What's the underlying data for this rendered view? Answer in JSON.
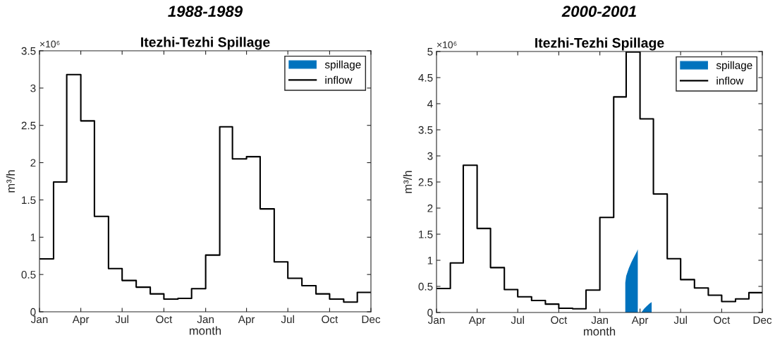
{
  "chart_data": [
    {
      "type": "step",
      "title": "1988-1989",
      "subtitle": "Itezhi-Tezhi Spillage",
      "xlabel": "month",
      "ylabel": "m³/h",
      "annotations": [
        "×10⁶"
      ],
      "xlim": [
        "1988-01",
        "1989-12-31"
      ],
      "xticks": [
        {
          "value": "1988-01",
          "label": "Jan"
        },
        {
          "value": "1988-04",
          "label": "Apr"
        },
        {
          "value": "1988-07",
          "label": "Jul"
        },
        {
          "value": "1988-10",
          "label": "Oct"
        },
        {
          "value": "1989-01",
          "label": "Jan"
        },
        {
          "value": "1989-04",
          "label": "Apr"
        },
        {
          "value": "1989-07",
          "label": "Jul"
        },
        {
          "value": "1989-10",
          "label": "Oct"
        },
        {
          "value": "1989-12-31",
          "label": "Dec"
        }
      ],
      "ylim": [
        0,
        3.5
      ],
      "yticks": [
        0,
        0.5,
        1,
        1.5,
        2,
        2.5,
        3,
        3.5
      ],
      "grid": false,
      "legend": "top right",
      "series": [
        {
          "name": "spillage",
          "type": "area",
          "color": "#0072bd"
        },
        {
          "name": "inflow",
          "color": "#000000",
          "x": [
            "1988-01",
            "1988-02",
            "1988-03",
            "1988-04",
            "1988-05",
            "1988-06",
            "1988-07",
            "1988-08",
            "1988-09",
            "1988-10",
            "1988-11",
            "1988-12",
            "1989-01",
            "1989-02",
            "1989-03",
            "1989-04",
            "1989-05",
            "1989-06",
            "1989-07",
            "1989-08",
            "1989-09",
            "1989-10",
            "1989-11",
            "1989-12",
            "1989-12-31"
          ],
          "values": [
            0.71,
            1.74,
            3.18,
            2.56,
            1.28,
            0.58,
            0.42,
            0.33,
            0.24,
            0.17,
            0.18,
            0.31,
            0.76,
            2.48,
            2.05,
            2.08,
            1.38,
            0.67,
            0.45,
            0.35,
            0.24,
            0.17,
            0.13,
            0.26,
            0.26
          ]
        }
      ]
    },
    {
      "type": "step",
      "title": "2000-2001",
      "subtitle": "Itezhi-Tezhi Spillage",
      "xlabel": "month",
      "ylabel": "m³/h",
      "annotations": [
        "×10⁶"
      ],
      "xlim": [
        "2000-01",
        "2001-12-31"
      ],
      "xticks": [
        {
          "value": "2000-01",
          "label": "Jan"
        },
        {
          "value": "2000-04",
          "label": "Apr"
        },
        {
          "value": "2000-07",
          "label": "Jul"
        },
        {
          "value": "2000-10",
          "label": "Oct"
        },
        {
          "value": "2001-01",
          "label": "Jan"
        },
        {
          "value": "2001-04",
          "label": "Apr"
        },
        {
          "value": "2001-07",
          "label": "Jul"
        },
        {
          "value": "2001-10",
          "label": "Oct"
        },
        {
          "value": "2001-12-31",
          "label": "Dec"
        }
      ],
      "ylim": [
        0,
        5
      ],
      "yticks": [
        0,
        0.5,
        1,
        1.5,
        2,
        2.5,
        3,
        3.5,
        4,
        4.5,
        5
      ],
      "grid": false,
      "legend": "top right",
      "series": [
        {
          "name": "spillage",
          "type": "area",
          "color": "#0072bd",
          "x": [
            "2001-02-27",
            "2001-02-27",
            "2001-03-01",
            "2001-03-07",
            "2001-03-13",
            "2001-03-19",
            "2001-03-25",
            "2001-03-27",
            "2001-03-27",
            "2001-04-01",
            "2001-04-04",
            "2001-04-10",
            "2001-04-16",
            "2001-04-22",
            "2001-04-27",
            "2001-04-27"
          ],
          "values": [
            0,
            0.57,
            0.7,
            0.85,
            0.97,
            1.07,
            1.17,
            1.21,
            0,
            null,
            0,
            0.07,
            0.12,
            0.17,
            0.2,
            0
          ]
        },
        {
          "name": "inflow",
          "color": "#000000",
          "x": [
            "2000-01",
            "2000-02",
            "2000-03",
            "2000-04",
            "2000-05",
            "2000-06",
            "2000-07",
            "2000-08",
            "2000-09",
            "2000-10",
            "2000-11",
            "2000-12",
            "2001-01",
            "2001-02",
            "2001-03",
            "2001-04",
            "2001-05",
            "2001-06",
            "2001-07",
            "2001-08",
            "2001-09",
            "2001-10",
            "2001-11",
            "2001-12",
            "2001-12-31"
          ],
          "values": [
            0.46,
            0.95,
            2.82,
            1.61,
            0.86,
            0.44,
            0.3,
            0.23,
            0.16,
            0.08,
            0.07,
            0.43,
            1.82,
            4.13,
            4.99,
            3.71,
            2.27,
            1.03,
            0.63,
            0.47,
            0.33,
            0.21,
            0.26,
            0.38,
            0.38
          ]
        }
      ]
    }
  ]
}
